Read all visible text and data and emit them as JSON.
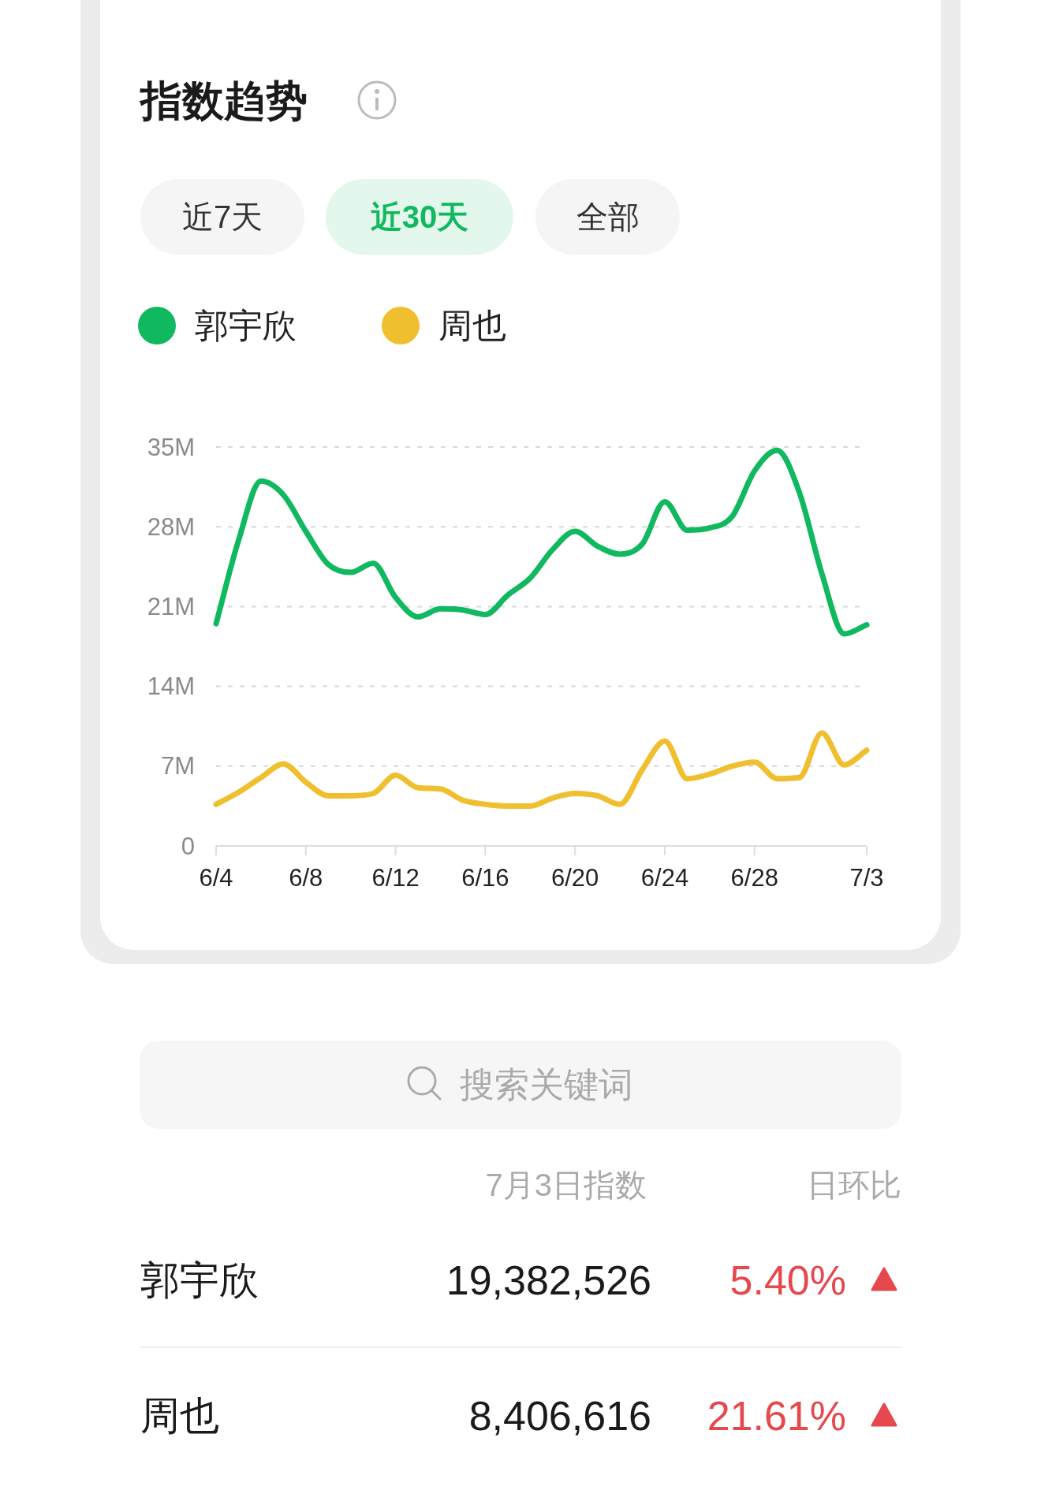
{
  "chart_data": {
    "type": "line",
    "title": "指数趋势",
    "categories": [
      "6/4",
      null,
      null,
      null,
      "6/8",
      null,
      null,
      null,
      "6/12",
      null,
      null,
      null,
      "6/16",
      null,
      null,
      null,
      "6/20",
      null,
      null,
      null,
      "6/24",
      null,
      null,
      null,
      "6/28",
      null,
      null,
      null,
      null,
      "7/3"
    ],
    "series": [
      {
        "name": "郭宇欣",
        "color": "#10b860",
        "values": [
          19.5,
          26.8,
          32.0,
          30.8,
          27.6,
          24.7,
          24.0,
          24.8,
          21.8,
          20.1,
          20.8,
          20.7,
          20.3,
          22.0,
          23.5,
          26.0,
          27.6,
          26.3,
          25.6,
          26.5,
          30.2,
          27.7,
          27.9,
          28.9,
          32.9,
          34.7,
          31.0,
          23.9,
          18.6,
          19.4
        ]
      },
      {
        "name": "周也",
        "color": "#f0bf30",
        "values": [
          3.65,
          4.7,
          6.0,
          7.2,
          5.6,
          4.4,
          4.4,
          4.6,
          6.2,
          5.1,
          5.0,
          4.0,
          3.65,
          3.5,
          3.5,
          4.2,
          4.6,
          4.4,
          3.65,
          6.7,
          9.2,
          5.9,
          6.3,
          7.0,
          7.35,
          5.9,
          6.0,
          9.9,
          7.1,
          8.4
        ]
      }
    ],
    "ylim": [
      0,
      35
    ],
    "yticks": [
      {
        "value": 0,
        "label": "0"
      },
      {
        "value": 7,
        "label": "7M"
      },
      {
        "value": 14,
        "label": "14M"
      },
      {
        "value": 21,
        "label": "21M"
      },
      {
        "value": 28,
        "label": "28M"
      },
      {
        "value": 35,
        "label": "35M"
      }
    ],
    "grid": "y",
    "legend": "top left",
    "annotations": [
      "近7天",
      "近30天",
      "全部",
      "搜索关键词",
      "7月3日指数",
      "日环比",
      "19,382,526",
      "5.40%",
      "8,406,616",
      "21.61%"
    ]
  }
}
